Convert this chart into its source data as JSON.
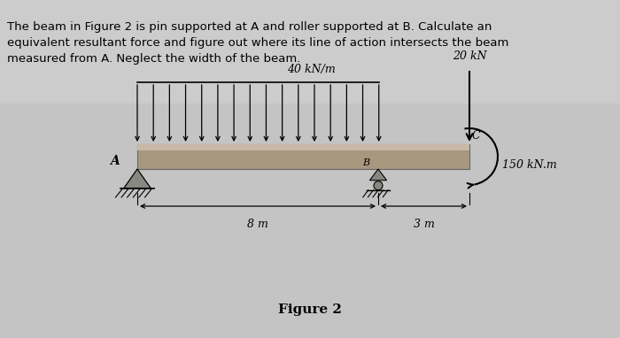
{
  "background_color_top": "#c8c8c8",
  "background_color_diagram": "#c8c8c8",
  "page_bg": "#c8c8c8",
  "text_lines": [
    "The beam in Figure 2 is pin supported at A and roller supported at B. Calculate an",
    "equivalent resultant force and figure out where its line of action intersects the beam",
    "measured from A. Neglect the width of the beam."
  ],
  "dist_load_label": "40 kN/m",
  "dist_load_arrow_count": 16,
  "point_load_label": "20 kN",
  "moment_label": "150 kN.m",
  "pin_label": "A",
  "roller_label": "B",
  "end_label": "C",
  "dim1_label": "8 m",
  "dim2_label": "3 m",
  "title_text": "Figure 2",
  "fig_width": 7.0,
  "fig_height": 3.82
}
